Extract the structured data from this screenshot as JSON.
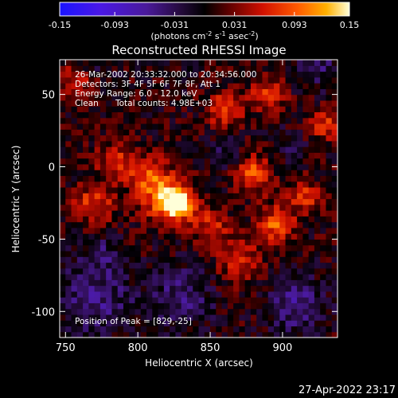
{
  "chart_data": {
    "type": "heatmap",
    "title": "Reconstructed RHESSI Image",
    "xlabel": "Heliocentric X (arcsec)",
    "ylabel": "Heliocentric Y (arcsec)",
    "xlim": [
      746,
      938
    ],
    "ylim": [
      -118,
      74
    ],
    "xticks": [
      750,
      800,
      850,
      900
    ],
    "yticks": [
      50,
      0,
      -50,
      -100
    ],
    "colorbar": {
      "range": [
        -0.15,
        0.15
      ],
      "ticks": [
        "-0.15",
        "-0.093",
        "-0.031",
        "0.031",
        "0.093",
        "0.15"
      ],
      "unit_label": "(photons cm",
      "unit_sup1": "-2",
      "unit_mid1": " s",
      "unit_sup2": "-1",
      "unit_mid2": " asec",
      "unit_sup3": "-2",
      "unit_end": ")"
    },
    "annotations": {
      "time_range": "26-Mar-2002 20:33:32.000 to 20:34:56.000",
      "detectors": "Detectors: 3F 4F 5F 6F 7F 8F, Att 1",
      "energy": "Energy Range: 6.0 - 12.0 keV",
      "method": "Clean",
      "counts": "Total counts: 4.98E+03",
      "peak": "Position of Peak = [829,-25]"
    },
    "peak_position": [
      829,
      -25
    ],
    "max_value": 0.15,
    "sources": [
      {
        "x": 827,
        "y": -25,
        "amp": 1.0,
        "sigma": 7
      },
      {
        "x": 818,
        "y": -22,
        "amp": 0.55,
        "sigma": 12
      },
      {
        "x": 808,
        "y": -5,
        "amp": 0.5,
        "sigma": 9
      },
      {
        "x": 880,
        "y": -5,
        "amp": 0.55,
        "sigma": 9
      },
      {
        "x": 895,
        "y": -40,
        "amp": 0.55,
        "sigma": 9
      },
      {
        "x": 915,
        "y": -20,
        "amp": 0.45,
        "sigma": 8
      },
      {
        "x": 770,
        "y": -25,
        "amp": 0.45,
        "sigma": 10
      },
      {
        "x": 785,
        "y": 5,
        "amp": 0.4,
        "sigma": 9
      },
      {
        "x": 860,
        "y": 40,
        "amp": 0.45,
        "sigma": 9
      },
      {
        "x": 890,
        "y": 50,
        "amp": 0.5,
        "sigma": 8
      },
      {
        "x": 850,
        "y": -40,
        "amp": 0.4,
        "sigma": 9
      },
      {
        "x": 870,
        "y": -65,
        "amp": 0.4,
        "sigma": 10
      },
      {
        "x": 930,
        "y": 30,
        "amp": 0.45,
        "sigma": 8
      },
      {
        "x": 760,
        "y": 60,
        "amp": 0.35,
        "sigma": 10
      }
    ],
    "cool_regions": [
      {
        "x": 770,
        "y": -90,
        "amp": 0.9,
        "sigma": 18
      },
      {
        "x": 830,
        "y": -90,
        "amp": 0.8,
        "sigma": 15
      },
      {
        "x": 910,
        "y": -95,
        "amp": 0.9,
        "sigma": 14
      },
      {
        "x": 770,
        "y": 70,
        "amp": 0.5,
        "sigma": 10
      },
      {
        "x": 925,
        "y": 70,
        "amp": 0.6,
        "sigma": 12
      },
      {
        "x": 860,
        "y": 10,
        "amp": 0.5,
        "sigma": 8
      },
      {
        "x": 905,
        "y": 15,
        "amp": 0.5,
        "sigma": 8
      },
      {
        "x": 775,
        "y": -60,
        "amp": 0.55,
        "sigma": 8
      }
    ]
  },
  "footer": {
    "timestamp": "27-Apr-2022 23:17"
  }
}
